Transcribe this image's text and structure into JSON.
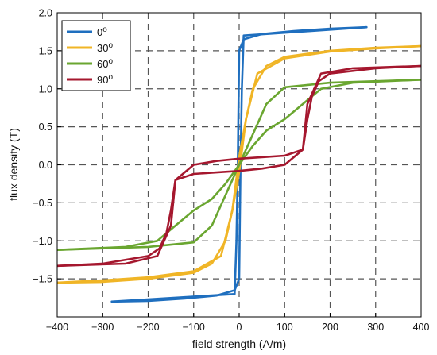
{
  "chart_data": {
    "type": "line",
    "title": "",
    "xlabel": "field strength (A/m)",
    "ylabel": "flux density (T)",
    "xlim": [
      -400,
      400
    ],
    "ylim": [
      -2.0,
      2.0
    ],
    "xticks": [
      -400,
      -300,
      -200,
      -100,
      0,
      100,
      200,
      300,
      400
    ],
    "xtick_labels": [
      "−400",
      "−300",
      "−200",
      "−100",
      "0",
      "100",
      "200",
      "300",
      "400"
    ],
    "yticks": [
      -1.5,
      -1.0,
      -0.5,
      0.0,
      0.5,
      1.0,
      1.5,
      2.0
    ],
    "ytick_labels": [
      "−1.5",
      "−1.0",
      "−0.5",
      "0.0",
      "0.5",
      "1.0",
      "1.5",
      "2.0"
    ],
    "grid": true,
    "legend_position": "top-left",
    "series": [
      {
        "name": "0°",
        "label_base": "0",
        "label_sup": "o",
        "color": "#1f6fbf",
        "upper": {
          "x": [
            -280,
            -10,
            -6,
            -3,
            0,
            10,
            50,
            120,
            200,
            280
          ],
          "y": [
            -1.8,
            -1.7,
            -1.0,
            0.0,
            1.5,
            1.65,
            1.72,
            1.76,
            1.79,
            1.81
          ]
        },
        "lower": {
          "x": [
            280,
            10,
            6,
            3,
            0,
            -10,
            -50,
            -120,
            -200,
            -280
          ],
          "y": [
            1.81,
            1.7,
            1.0,
            0.0,
            -1.5,
            -1.65,
            -1.72,
            -1.76,
            -1.79,
            -1.8
          ]
        }
      },
      {
        "name": "30°",
        "label_base": "30",
        "label_sup": "o",
        "color": "#f0b526",
        "upper": {
          "x": [
            -400,
            -300,
            -200,
            -100,
            -40,
            -15,
            0,
            15,
            30,
            60,
            100,
            200,
            300,
            400
          ],
          "y": [
            -1.55,
            -1.52,
            -1.48,
            -1.4,
            -1.2,
            -0.6,
            0.1,
            0.6,
            1.0,
            1.3,
            1.42,
            1.5,
            1.54,
            1.56
          ]
        },
        "lower": {
          "x": [
            400,
            300,
            200,
            100,
            40,
            15,
            0,
            -15,
            -30,
            -60,
            -100,
            -200,
            -300,
            -400
          ],
          "y": [
            1.56,
            1.53,
            1.49,
            1.4,
            1.2,
            0.6,
            -0.1,
            -0.6,
            -1.0,
            -1.3,
            -1.42,
            -1.5,
            -1.54,
            -1.55
          ]
        }
      },
      {
        "name": "60°",
        "label_base": "60",
        "label_sup": "o",
        "color": "#6aa630",
        "upper": {
          "x": [
            -400,
            -200,
            -100,
            -60,
            -30,
            0,
            30,
            60,
            100,
            130,
            150,
            180,
            250,
            400
          ],
          "y": [
            -1.12,
            -1.08,
            -1.02,
            -0.8,
            -0.4,
            0.0,
            0.25,
            0.45,
            0.6,
            0.75,
            0.85,
            1.0,
            1.08,
            1.12
          ]
        },
        "lower": {
          "x": [
            400,
            200,
            100,
            60,
            30,
            0,
            -30,
            -60,
            -100,
            -130,
            -150,
            -180,
            -250,
            -400
          ],
          "y": [
            1.12,
            1.08,
            1.02,
            0.8,
            0.4,
            0.0,
            -0.25,
            -0.45,
            -0.6,
            -0.75,
            -0.85,
            -1.0,
            -1.08,
            -1.12
          ]
        }
      },
      {
        "name": "90°",
        "label_base": "90",
        "label_sup": "o",
        "color": "#a5172e",
        "upper": {
          "x": [
            -400,
            -250,
            -180,
            -150,
            -140,
            -100,
            -50,
            0,
            50,
            100,
            140,
            150,
            160,
            175,
            200,
            300,
            400
          ],
          "y": [
            -1.33,
            -1.3,
            -1.2,
            -0.8,
            -0.2,
            0.0,
            0.05,
            0.08,
            0.1,
            0.12,
            0.2,
            0.6,
            0.9,
            1.1,
            1.2,
            1.27,
            1.3
          ]
        },
        "lower": {
          "x": [
            400,
            250,
            180,
            150,
            140,
            100,
            50,
            0,
            -50,
            -100,
            -140,
            -150,
            -160,
            -175,
            -200,
            -300,
            -400
          ],
          "y": [
            1.3,
            1.27,
            1.2,
            0.8,
            0.2,
            0.0,
            -0.05,
            -0.08,
            -0.1,
            -0.12,
            -0.2,
            -0.6,
            -0.9,
            -1.1,
            -1.2,
            -1.3,
            -1.33
          ]
        }
      }
    ]
  }
}
